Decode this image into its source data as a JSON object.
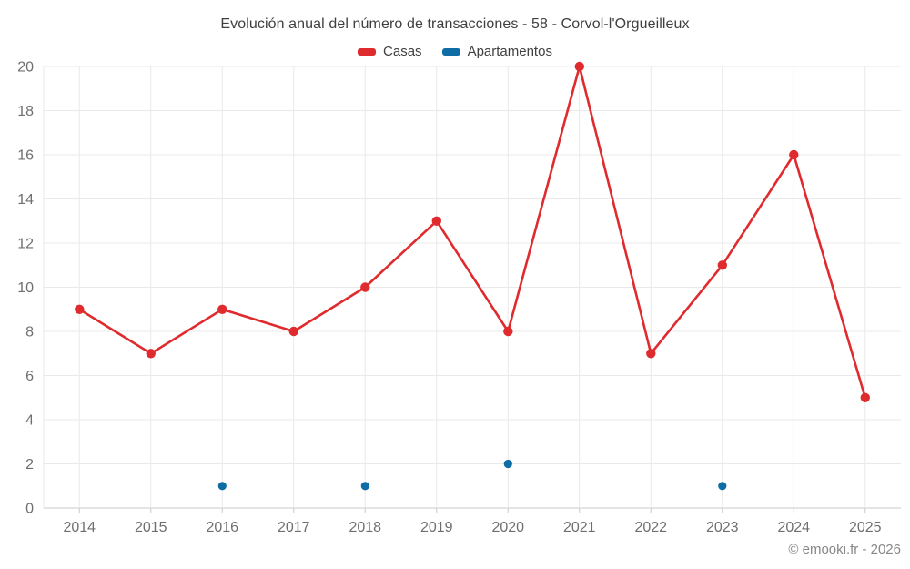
{
  "chart_data": {
    "type": "line",
    "title": "Evolución anual del número de transacciones - 58 - Corvol-l'Orgueilleux",
    "categories": [
      "2014",
      "2015",
      "2016",
      "2017",
      "2018",
      "2019",
      "2020",
      "2021",
      "2022",
      "2023",
      "2024",
      "2025"
    ],
    "series": [
      {
        "name": "Casas",
        "type": "line",
        "color": "#e02b2e",
        "values": [
          9,
          7,
          9,
          8,
          10,
          13,
          8,
          20,
          7,
          11,
          16,
          5
        ]
      },
      {
        "name": "Apartamentos",
        "type": "scatter",
        "color": "#0f6da6",
        "values": [
          null,
          null,
          1,
          null,
          1,
          null,
          2,
          null,
          null,
          1,
          null,
          null
        ]
      }
    ],
    "xlabel": "",
    "ylabel": "",
    "ylim": [
      0,
      20
    ],
    "ytick": 2,
    "grid": true,
    "legend_position": "top",
    "style": {
      "grid_color": "#e9e9e9",
      "axis_line_color": "#c9c9c9",
      "tick_color": "#c9c9c9",
      "axis_text_color": "#6f6f6f"
    }
  },
  "footer": {
    "copyright": "© emooki.fr - 2026"
  }
}
